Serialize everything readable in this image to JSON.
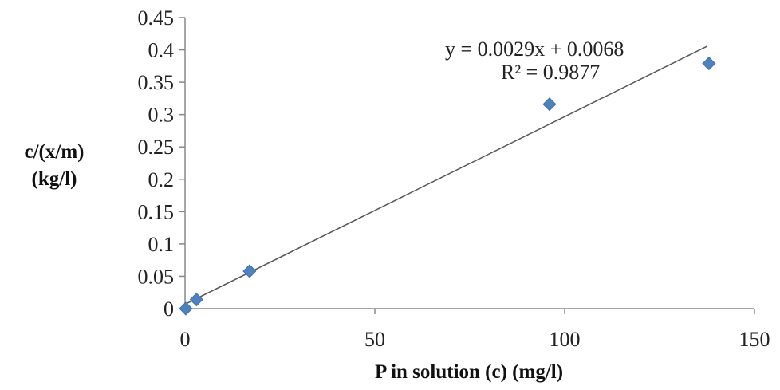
{
  "chart_data": {
    "type": "scatter",
    "xlabel": "P in solution (c)  (mg/l)",
    "ylabel_lines": [
      "c/(x/m)",
      "(kg/l)"
    ],
    "xlim": [
      0,
      150
    ],
    "ylim": [
      0,
      0.45
    ],
    "x_ticks": [
      0,
      50,
      100,
      150
    ],
    "x_tick_labels": [
      "0",
      "50",
      "100",
      "150"
    ],
    "y_ticks": [
      0,
      0.05,
      0.1,
      0.15,
      0.2,
      0.25,
      0.3,
      0.35,
      0.4,
      0.45
    ],
    "y_tick_labels": [
      "0",
      "0.05",
      "0.1",
      "0.15",
      "0.2",
      "0.25",
      "0.3",
      "0.35",
      "0.4",
      "0.45"
    ],
    "grid": false,
    "points": [
      {
        "x": 0.2,
        "y": 0.0
      },
      {
        "x": 3,
        "y": 0.014
      },
      {
        "x": 17,
        "y": 0.058
      },
      {
        "x": 96,
        "y": 0.316
      },
      {
        "x": 138,
        "y": 0.379
      }
    ],
    "marker_color": "#4F81BD",
    "trendline": {
      "slope": 0.0029,
      "intercept": 0.0068,
      "x_range": [
        0,
        137.5
      ],
      "color": "#555555",
      "equation_label": "y = 0.0029x + 0.0068",
      "r2_label": "R² = 0.9877"
    }
  }
}
